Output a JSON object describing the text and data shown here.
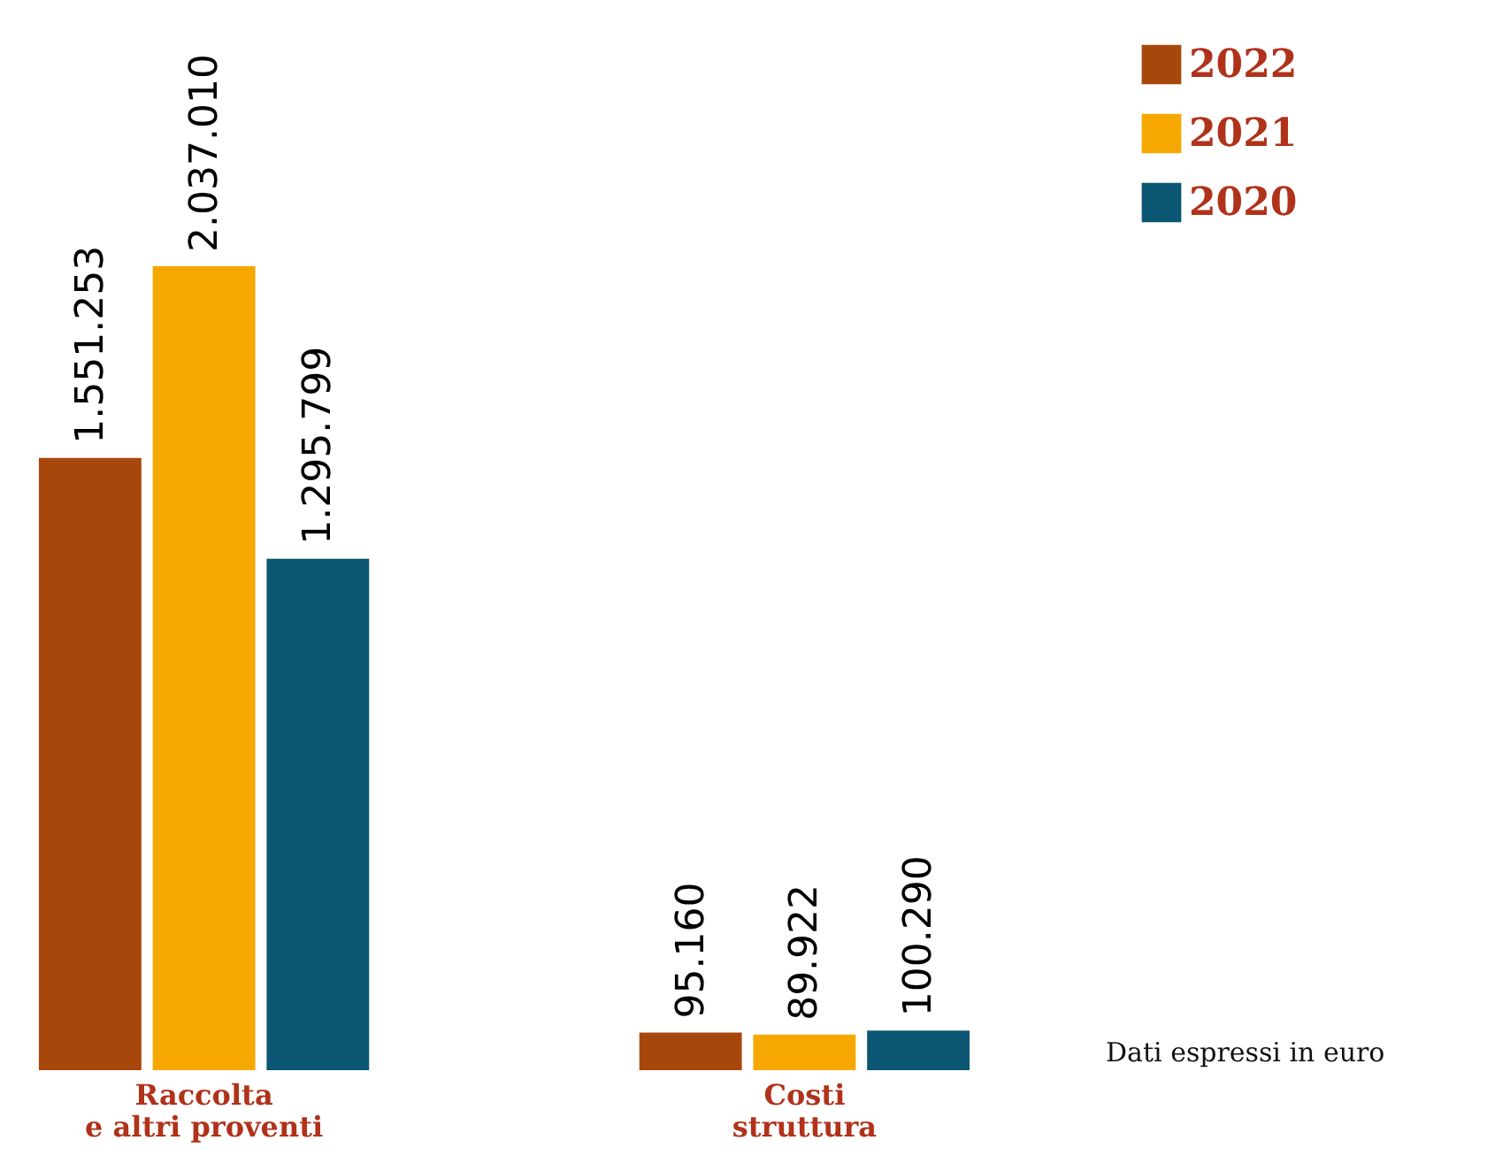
{
  "chart_data": {
    "type": "bar",
    "categories": [
      "Raccolta\ne altri proventi",
      "Costi\nstruttura"
    ],
    "series": [
      {
        "name": "2022",
        "color": "#a8470c",
        "values": [
          1551253,
          95160
        ],
        "value_labels": [
          "1.551.253",
          "95.160"
        ]
      },
      {
        "name": "2021",
        "color": "#f7a800",
        "values": [
          2037010,
          89922
        ],
        "value_labels": [
          "2.037.010",
          "89.922"
        ]
      },
      {
        "name": "2020",
        "color": "#0b5672",
        "values": [
          1295799,
          100290
        ],
        "value_labels": [
          "1.295.799",
          "100.290"
        ]
      }
    ],
    "legend": "right",
    "grid": false,
    "annotations": [
      "Dati espressi in euro"
    ]
  }
}
